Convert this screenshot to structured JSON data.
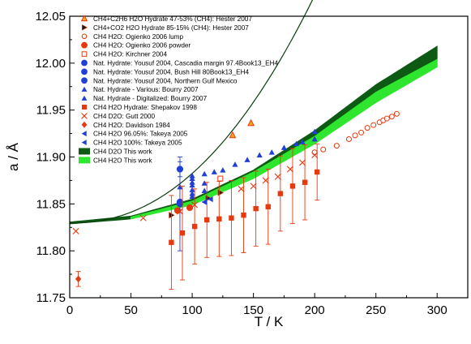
{
  "chart_data": {
    "type": "scatter",
    "xlabel": "T / K",
    "ylabel": "a / Å",
    "xlim": [
      0,
      325
    ],
    "ylim": [
      11.75,
      12.05
    ],
    "x_ticks": [
      "0",
      "50",
      "100",
      "150",
      "200",
      "250",
      "300"
    ],
    "y_ticks": [
      "11.75",
      "11.80",
      "11.85",
      "11.90",
      "11.95",
      "12.00",
      "12.05"
    ],
    "x_tick_values": [
      0,
      50,
      100,
      150,
      200,
      250,
      300
    ],
    "y_tick_values": [
      11.75,
      11.8,
      11.85,
      11.9,
      11.95,
      12.0,
      12.05
    ],
    "grid": false,
    "legend_position": "top-left",
    "series": [
      {
        "name": "CH4+C2H6 H2O Hydrate 47-53% (CH4): Hester 2007",
        "marker": "triangle-open",
        "color": "#e8380d",
        "fill": "#f5a623",
        "points": [
          [
            133,
            11.923
          ],
          [
            148,
            11.936
          ]
        ]
      },
      {
        "name": "CH4+CO2 H2O Hydrate 85-15% (CH4): Hester 2007",
        "marker": "triangle-right",
        "color": "#1a1a1a",
        "fill": "#e8380d",
        "points": [
          [
            83,
            11.838
          ],
          [
            113,
            11.856
          ],
          [
            123,
            11.862
          ]
        ]
      },
      {
        "name": "CH4 H2O: Ogienko 2006 lump",
        "marker": "circle-open",
        "color": "#e8380d",
        "points": [
          [
            200,
            11.905
          ],
          [
            207,
            11.908
          ],
          [
            218,
            11.912
          ],
          [
            228,
            11.919
          ],
          [
            233,
            11.923
          ],
          [
            238,
            11.926
          ],
          [
            243,
            11.931
          ],
          [
            248,
            11.934
          ],
          [
            253,
            11.937
          ],
          [
            256,
            11.939
          ],
          [
            259,
            11.941
          ],
          [
            263,
            11.943
          ],
          [
            267,
            11.946
          ]
        ]
      },
      {
        "name": "CH4 H2O: Ogienko 2006 powder",
        "marker": "circle",
        "color": "#e8380d",
        "points": [
          [
            88,
            11.843
          ],
          [
            98,
            11.846
          ]
        ]
      },
      {
        "name": "CH4 H2O: Kirchner 2004",
        "marker": "square-open",
        "color": "#e8380d",
        "points": [
          [
            123,
            11.877
          ]
        ]
      },
      {
        "name": "Nat. Hydrate: Yousuf 2004, Cascadia margin 97.4Book13_EH4",
        "marker": "circle",
        "color": "#1f3fd6",
        "points": [
          [
            90,
            11.887,
            0.008
          ]
        ]
      },
      {
        "name": "Nat. Hydrate: Yousuf 2004, Bush Hill 80Book13_EH4",
        "marker": "circle",
        "color": "#1f3fd6",
        "points": [
          [
            90,
            11.852
          ]
        ]
      },
      {
        "name": "Nat. Hydrate: Yousuf 2004, Northern Gulf Mexico",
        "marker": "circle",
        "color": "#1f3fd6",
        "points": [
          [
            90,
            11.85,
            0.05
          ]
        ]
      },
      {
        "name": "Nat. Hydrate - Various: Bourry 2007",
        "marker": "triangle",
        "color": "#1f3fd6",
        "points": [
          [
            90,
            11.868
          ],
          [
            100,
            11.861
          ],
          [
            100,
            11.865
          ],
          [
            100,
            11.87
          ],
          [
            100,
            11.873
          ],
          [
            100,
            11.877
          ],
          [
            100,
            11.88
          ],
          [
            110,
            11.872
          ],
          [
            110,
            11.882
          ],
          [
            118,
            11.884
          ],
          [
            125,
            11.886
          ],
          [
            135,
            11.892
          ],
          [
            145,
            11.897
          ],
          [
            155,
            11.902
          ],
          [
            165,
            11.905
          ],
          [
            175,
            11.91
          ],
          [
            185,
            11.914
          ],
          [
            200,
            11.927
          ]
        ]
      },
      {
        "name": "Nat. Hydrate - Digitalized: Bourry 2007",
        "marker": "triangle",
        "color": "#1f3fd6",
        "points": [
          [
            100,
            11.858
          ],
          [
            110,
            11.864
          ],
          [
            190,
            11.916
          ],
          [
            200,
            11.919
          ]
        ]
      },
      {
        "name": "CH4 H2O Hydrate: Shepakov 1998",
        "marker": "square",
        "color": "#e8380d",
        "points": [
          [
            83,
            11.809,
            0.05
          ],
          [
            92,
            11.819,
            0.05
          ],
          [
            102,
            11.826,
            0.04
          ],
          [
            112,
            11.833,
            0.04
          ],
          [
            122,
            11.834,
            0.04
          ],
          [
            132,
            11.835,
            0.04
          ],
          [
            142,
            11.838,
            0.04
          ],
          [
            152,
            11.845,
            0.04
          ],
          [
            162,
            11.847,
            0.04
          ],
          [
            172,
            11.861,
            0.04
          ],
          [
            182,
            11.869,
            0.04
          ],
          [
            192,
            11.873,
            0.04
          ],
          [
            202,
            11.884,
            0.03
          ]
        ]
      },
      {
        "name": "CH4 D2O: Gutt 2000",
        "marker": "x",
        "color": "#e8380d",
        "points": [
          [
            5,
            11.821
          ],
          [
            60,
            11.835
          ],
          [
            90,
            11.842
          ],
          [
            102,
            11.849
          ],
          [
            140,
            11.866
          ],
          [
            150,
            11.869
          ],
          [
            160,
            11.875
          ],
          [
            170,
            11.879
          ],
          [
            180,
            11.887
          ],
          [
            190,
            11.894
          ],
          [
            200,
            11.902
          ]
        ]
      },
      {
        "name": "CH4 H2O: Davidson 1984",
        "marker": "diamond",
        "color": "#e8380d",
        "points": [
          [
            7,
            11.77,
            0.008
          ]
        ]
      },
      {
        "name": "CH4 H2O 96.05%: Takeya 2005",
        "marker": "triangle-left",
        "color": "#1f3fd6",
        "points": [
          [
            110,
            11.852
          ]
        ]
      },
      {
        "name": "CH4 H2O 100%: Takeya 2005",
        "marker": "triangle-left",
        "color": "#1f3fd6",
        "points": [
          [
            115,
            11.855
          ]
        ]
      },
      {
        "name": "CH4 D2O This work",
        "marker": "band",
        "color": "#0e5a14",
        "curve": {
          "a0": 11.8297,
          "c": 2.1e-06,
          "p": 2.2
        },
        "band": [
          [
            0,
            11.8287,
            11.8307
          ],
          [
            50,
            11.834,
            11.837
          ],
          [
            100,
            11.85,
            11.855
          ],
          [
            150,
            11.879,
            11.886
          ],
          [
            200,
            11.919,
            11.928
          ],
          [
            250,
            11.965,
            11.977
          ],
          [
            300,
            12.003,
            12.018
          ]
        ]
      },
      {
        "name": "CH4 H2O This work",
        "marker": "band",
        "color": "#2ee62e",
        "band": [
          [
            50,
            11.834,
            11.836
          ],
          [
            100,
            11.849,
            11.853
          ],
          [
            150,
            11.877,
            11.884
          ],
          [
            200,
            11.914,
            11.922
          ],
          [
            250,
            11.958,
            11.969
          ],
          [
            300,
            11.996,
            12.004
          ]
        ]
      }
    ]
  }
}
